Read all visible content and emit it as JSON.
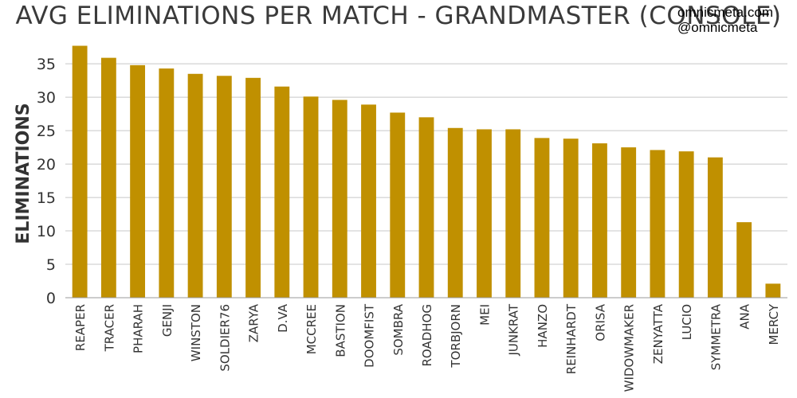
{
  "credits": {
    "site": "omnicmeta.com",
    "handle": "@omnicmeta"
  },
  "chart_data": {
    "type": "bar",
    "title": "AVG ELIMINATIONS PER MATCH - GRANDMASTER (CONSOLE)",
    "xlabel": "",
    "ylabel": "ELIMINATIONS",
    "ylim": [
      0,
      38
    ],
    "yticks": [
      0,
      5,
      10,
      15,
      20,
      25,
      30,
      35
    ],
    "grid": true,
    "bar_color": "#c09000",
    "categories": [
      "REAPER",
      "TRACER",
      "PHARAH",
      "GENJI",
      "WINSTON",
      "SOLDIER76",
      "ZARYA",
      "D.VA",
      "MCCREE",
      "BASTION",
      "DOOMFIST",
      "SOMBRA",
      "ROADHOG",
      "TORBJORN",
      "MEI",
      "JUNKRAT",
      "HANZO",
      "REINHARDT",
      "ORISA",
      "WIDOWMAKER",
      "ZENYATTA",
      "LUCIO",
      "SYMMETRA",
      "ANA",
      "MERCY"
    ],
    "values": [
      37.7,
      35.9,
      34.8,
      34.3,
      33.5,
      33.2,
      32.9,
      31.6,
      30.1,
      29.6,
      28.9,
      27.7,
      27.0,
      25.4,
      25.2,
      25.2,
      23.9,
      23.8,
      23.1,
      22.5,
      22.1,
      21.9,
      21.0,
      11.3,
      2.1
    ]
  }
}
